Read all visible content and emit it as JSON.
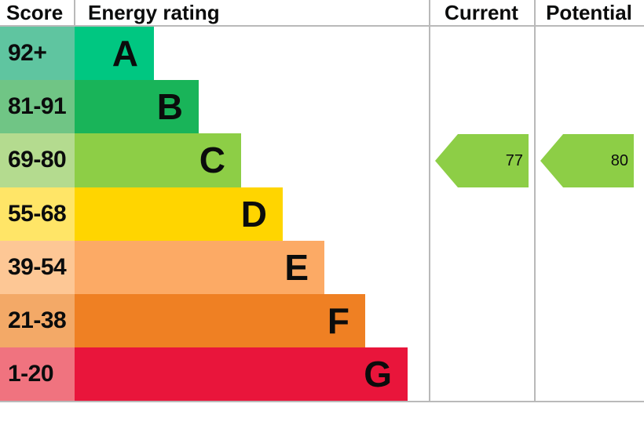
{
  "header": {
    "score": "Score",
    "energy_rating": "Energy rating",
    "current": "Current",
    "potential": "Potential"
  },
  "bands": [
    {
      "letter": "A",
      "range": "92+",
      "color": "#00c781",
      "score_bg": "#5fc5a0"
    },
    {
      "letter": "B",
      "range": "81-91",
      "color": "#19b459",
      "score_bg": "#70c585"
    },
    {
      "letter": "C",
      "range": "69-80",
      "color": "#8dce46",
      "score_bg": "#b4db8f"
    },
    {
      "letter": "D",
      "range": "55-68",
      "color": "#ffd500",
      "score_bg": "#ffe567"
    },
    {
      "letter": "E",
      "range": "39-54",
      "color": "#fcaa65",
      "score_bg": "#fdc795"
    },
    {
      "letter": "F",
      "range": "21-38",
      "color": "#ef8023",
      "score_bg": "#f3a967"
    },
    {
      "letter": "G",
      "range": "1-20",
      "color": "#e9153b",
      "score_bg": "#f0737f"
    }
  ],
  "current": {
    "value": "77",
    "color": "#8dce46",
    "band": "C"
  },
  "potential": {
    "value": "80",
    "color": "#8dce46",
    "band": "C"
  },
  "line_color": "#b9b9b9",
  "chart_data": {
    "type": "bar",
    "title": "Energy rating",
    "categories": [
      "A",
      "B",
      "C",
      "D",
      "E",
      "F",
      "G"
    ],
    "score_ranges": [
      "92+",
      "81-91",
      "69-80",
      "55-68",
      "39-54",
      "21-38",
      "1-20"
    ],
    "band_colors": [
      "#00c781",
      "#19b459",
      "#8dce46",
      "#ffd500",
      "#fcaa65",
      "#ef8023",
      "#e9153b"
    ],
    "columns": [
      "Score",
      "Energy rating",
      "Current",
      "Potential"
    ],
    "markers": {
      "current": 77,
      "potential": 80,
      "current_band": "C",
      "potential_band": "C"
    },
    "legend_position": "none",
    "grid": false
  }
}
